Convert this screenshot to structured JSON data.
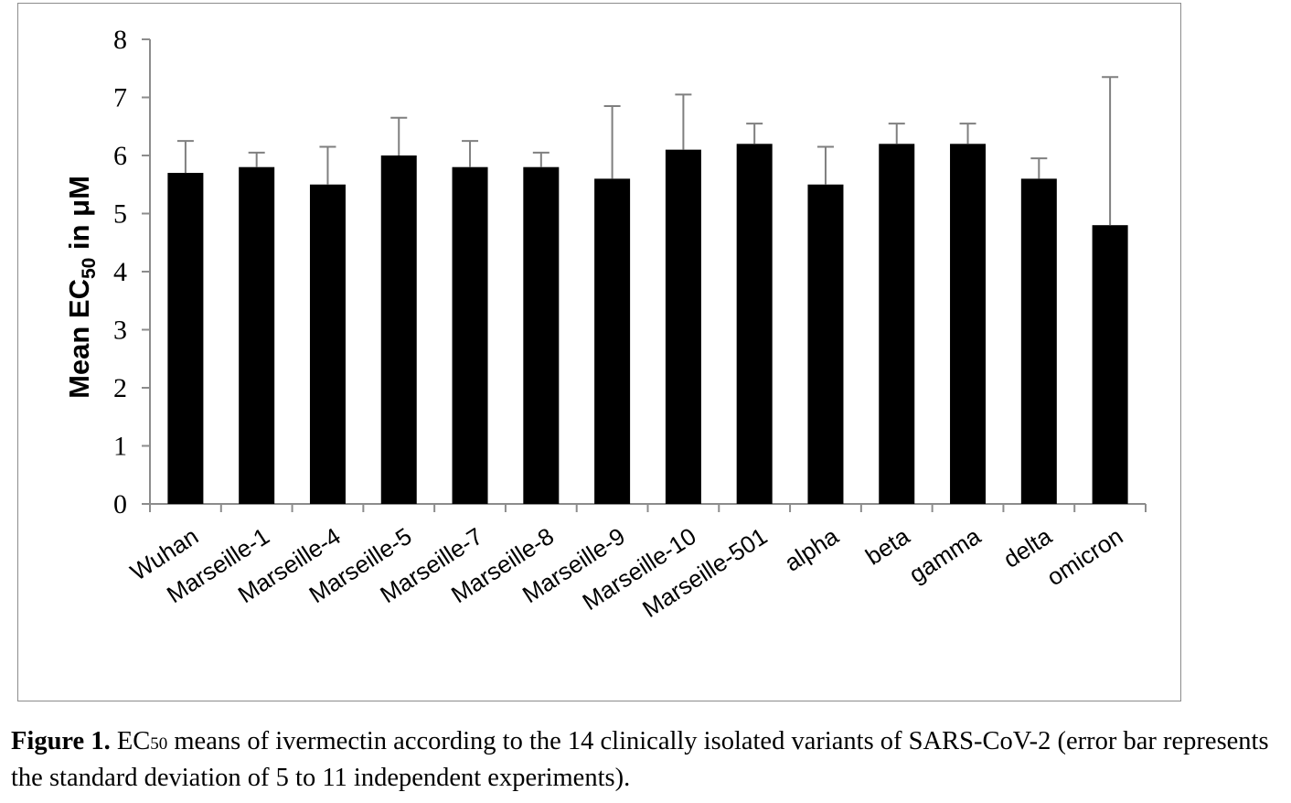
{
  "chart_data": {
    "type": "bar",
    "categories": [
      "Wuhan",
      "Marseille-1",
      "Marseille-4",
      "Marseille-5",
      "Marseille-7",
      "Marseille-8",
      "Marseille-9",
      "Marseille-10",
      "Marseille-501",
      "alpha",
      "beta",
      "gamma",
      "delta",
      "omicron"
    ],
    "values": [
      5.7,
      5.8,
      5.5,
      6.0,
      5.8,
      5.8,
      5.6,
      6.1,
      6.2,
      5.5,
      6.2,
      6.2,
      5.6,
      4.8
    ],
    "error": [
      0.55,
      0.25,
      0.65,
      0.65,
      0.45,
      0.25,
      1.25,
      0.95,
      0.35,
      0.65,
      0.35,
      0.35,
      0.35,
      2.55
    ],
    "ylabel_main": "Mean EC",
    "ylabel_sub": "50",
    "ylabel_tail": " in μM",
    "ylim": [
      0,
      8
    ],
    "yticks": [
      "0",
      "1",
      "2",
      "3",
      "4",
      "5",
      "6",
      "7",
      "8"
    ],
    "grid": false,
    "bar_color": "#000000",
    "error_bar_color": "#7f7f7f"
  },
  "caption": {
    "label": "Figure 1.",
    "text_ec": " EC",
    "text_sub": "50",
    "text_rest": " means of ivermectin according to the 14 clinically isolated variants of SARS-CoV-2 (error bar represents the standard deviation of 5 to 11 independent experiments)."
  }
}
